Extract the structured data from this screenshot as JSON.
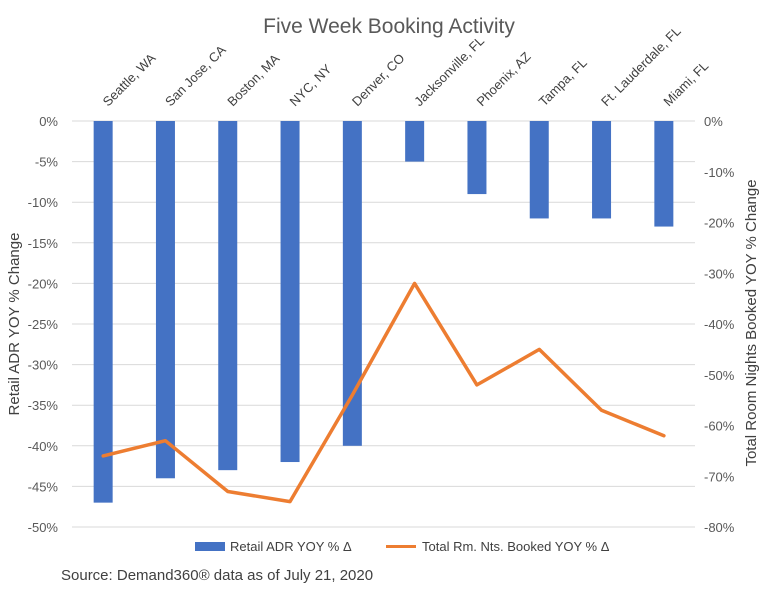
{
  "chart_data": {
    "type": "bar",
    "title": "Five Week Booking Activity",
    "categories": [
      "Seattle, WA",
      "San Jose, CA",
      "Boston, MA",
      "NYC, NY",
      "Denver, CO",
      "Jacksonville, FL",
      "Phoenix, AZ",
      "Tampa, FL",
      "Ft. Lauderdale, FL",
      "Miami, FL"
    ],
    "series": [
      {
        "name": "Retail ADR YOY % Δ",
        "type": "bar",
        "axis": "left",
        "color": "#4472C4",
        "values": [
          -47,
          -44,
          -43,
          -42,
          -40,
          -5,
          -9,
          -12,
          -12,
          -13
        ]
      },
      {
        "name": "Total Rm. Nts. Booked YOY % Δ",
        "type": "line",
        "axis": "right",
        "color": "#ED7D31",
        "values": [
          -66,
          -63,
          -73,
          -75,
          -54,
          -32,
          -52,
          -45,
          -57,
          -62
        ]
      }
    ],
    "ylabel": "Retail ADR YOY % Change",
    "ylabel_right": "Total Room Nights Booked YOY % Change",
    "ylim": [
      -50,
      0
    ],
    "ylim_right": [
      -80,
      0
    ],
    "yticks": [
      "0%",
      "-5%",
      "-10%",
      "-15%",
      "-20%",
      "-25%",
      "-30%",
      "-35%",
      "-40%",
      "-45%",
      "-50%"
    ],
    "yticks_right": [
      "0%",
      "-10%",
      "-20%",
      "-30%",
      "-40%",
      "-50%",
      "-60%",
      "-70%",
      "-80%"
    ],
    "grid": true,
    "legend_position": "bottom"
  },
  "footer": {
    "source": "Source: Demand360®  data as of July 21, 2020"
  }
}
